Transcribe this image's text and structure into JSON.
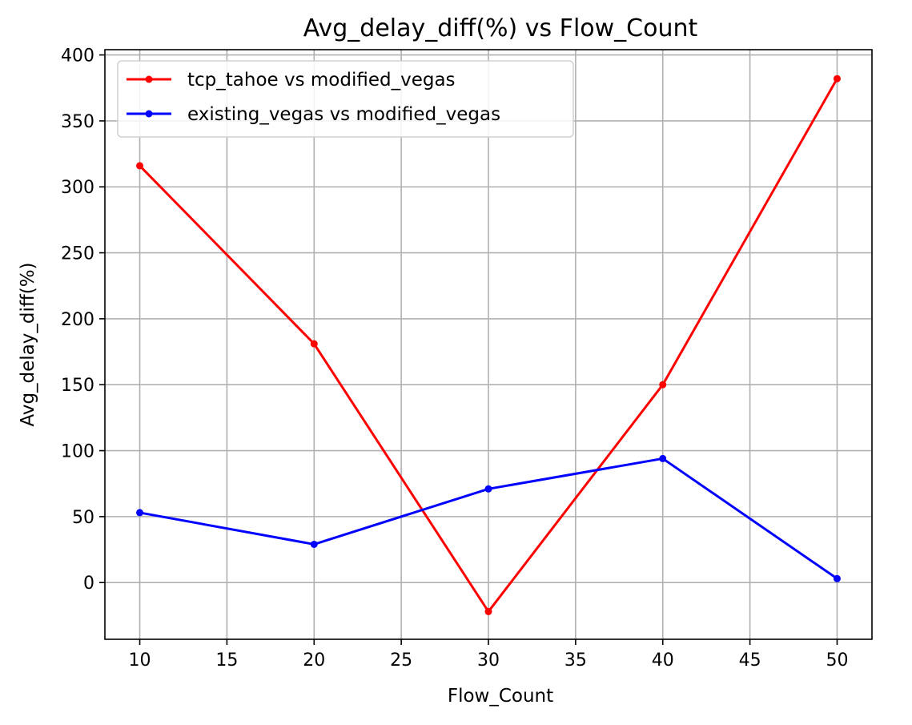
{
  "chart_data": {
    "type": "line",
    "title": "Avg_delay_diff(%) vs Flow_Count",
    "xlabel": "Flow_Count",
    "ylabel": "Avg_delay_diff(%)",
    "x": [
      10,
      20,
      30,
      40,
      50
    ],
    "xlim": [
      8,
      52
    ],
    "ylim": [
      -43,
      404
    ],
    "xticks": [
      10,
      15,
      20,
      25,
      30,
      35,
      40,
      45,
      50
    ],
    "yticks": [
      0,
      50,
      100,
      150,
      200,
      250,
      300,
      350,
      400
    ],
    "grid": true,
    "legend_position": "top-left",
    "series": [
      {
        "name": "tcp_tahoe vs modified_vegas",
        "color": "#ff0000",
        "values": [
          316,
          181,
          -22,
          150,
          382
        ]
      },
      {
        "name": "existing_vegas vs modified_vegas",
        "color": "#0000ff",
        "values": [
          53,
          29,
          71,
          94,
          3
        ]
      }
    ]
  }
}
